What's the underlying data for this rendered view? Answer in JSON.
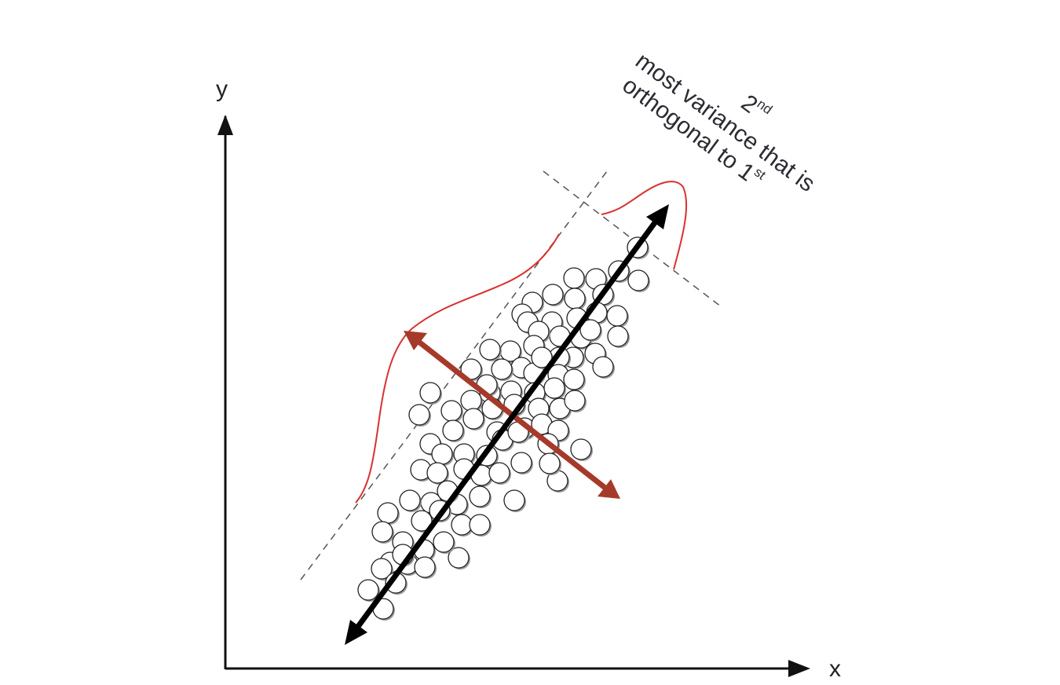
{
  "axes": {
    "x_label": "x",
    "y_label": "y"
  },
  "annotation": {
    "ordinal_number": "2",
    "ordinal_suffix": "nd",
    "line1": "most variance that is",
    "line2_text": "orthogonal to 1",
    "line2_suffix": "st"
  },
  "colors": {
    "axis": "#111111",
    "first_component_arrow": "#000000",
    "second_component_arrow": "#a63a2a",
    "distribution_curve": "#d93030",
    "guide_lines": "#555555",
    "points_fill": "#ffffff",
    "points_stroke": "#222222",
    "point_shadow": "#9a9a9a"
  },
  "scatter_points": [
    [
      812,
      315
    ],
    [
      788,
      345
    ],
    [
      813,
      357
    ],
    [
      759,
      355
    ],
    [
      731,
      354
    ],
    [
      704,
      375
    ],
    [
      732,
      380
    ],
    [
      768,
      375
    ],
    [
      678,
      385
    ],
    [
      665,
      400
    ],
    [
      672,
      410
    ],
    [
      703,
      410
    ],
    [
      735,
      405
    ],
    [
      760,
      398
    ],
    [
      786,
      402
    ],
    [
      787,
      428
    ],
    [
      740,
      430
    ],
    [
      758,
      450
    ],
    [
      768,
      467
    ],
    [
      713,
      428
    ],
    [
      686,
      422
    ],
    [
      730,
      455
    ],
    [
      712,
      455
    ],
    [
      680,
      440
    ],
    [
      650,
      447
    ],
    [
      624,
      445
    ],
    [
      664,
      468
    ],
    [
      639,
      470
    ],
    [
      600,
      470
    ],
    [
      680,
      475
    ],
    [
      711,
      477
    ],
    [
      731,
      483
    ],
    [
      681,
      500
    ],
    [
      706,
      494
    ],
    [
      651,
      498
    ],
    [
      624,
      500
    ],
    [
      600,
      510
    ],
    [
      548,
      500
    ],
    [
      534,
      528
    ],
    [
      575,
      523
    ],
    [
      603,
      533
    ],
    [
      627,
      520
    ],
    [
      655,
      515
    ],
    [
      686,
      520
    ],
    [
      713,
      520
    ],
    [
      732,
      510
    ],
    [
      668,
      545
    ],
    [
      633,
      550
    ],
    [
      577,
      548
    ],
    [
      548,
      565
    ],
    [
      563,
      578
    ],
    [
      591,
      578
    ],
    [
      620,
      580
    ],
    [
      640,
      560
    ],
    [
      660,
      550
    ],
    [
      690,
      540
    ],
    [
      711,
      548
    ],
    [
      740,
      572
    ],
    [
      698,
      565
    ],
    [
      536,
      598
    ],
    [
      557,
      602
    ],
    [
      591,
      597
    ],
    [
      613,
      605
    ],
    [
      636,
      602
    ],
    [
      664,
      589
    ],
    [
      710,
      612
    ],
    [
      655,
      637
    ],
    [
      611,
      632
    ],
    [
      582,
      642
    ],
    [
      549,
      640
    ],
    [
      522,
      637
    ],
    [
      494,
      653
    ],
    [
      537,
      663
    ],
    [
      560,
      650
    ],
    [
      588,
      668
    ],
    [
      611,
      668
    ],
    [
      487,
      677
    ],
    [
      513,
      690
    ],
    [
      540,
      700
    ],
    [
      519,
      718
    ],
    [
      497,
      716
    ],
    [
      486,
      724
    ],
    [
      541,
      722
    ],
    [
      584,
      710
    ],
    [
      504,
      742
    ],
    [
      469,
      751
    ],
    [
      488,
      775
    ],
    [
      513,
      706
    ],
    [
      570,
      625
    ],
    [
      620,
      490
    ],
    [
      690,
      455
    ],
    [
      752,
      420
    ],
    [
      700,
      590
    ],
    [
      565,
      690
    ]
  ]
}
